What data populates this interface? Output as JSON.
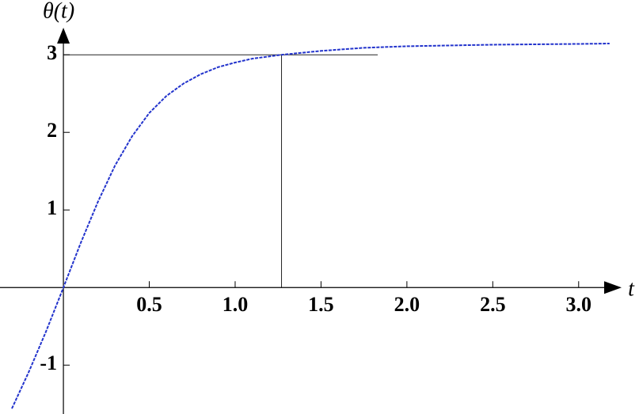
{
  "chart_data": {
    "type": "line",
    "x_label": "t",
    "y_label": "θ(t)",
    "x": [
      -0.3,
      -0.2,
      -0.1,
      0,
      0.1,
      0.2,
      0.3,
      0.4,
      0.5,
      0.6,
      0.7,
      0.8,
      0.9,
      1.0,
      1.1,
      1.27,
      1.5,
      1.75,
      2.0,
      2.5,
      3.0,
      3.18
    ],
    "series": [
      {
        "color": "#2233cc",
        "values": [
          -1.56,
          -1.08,
          -0.56,
          0,
          0.57,
          1.1,
          1.57,
          1.95,
          2.25,
          2.47,
          2.63,
          2.75,
          2.84,
          2.9,
          2.95,
          3.0,
          3.05,
          3.09,
          3.11,
          3.13,
          3.14,
          3.145
        ]
      }
    ],
    "xlim": [
      -0.3,
      3.25
    ],
    "ylim": [
      -1.63,
      3.4
    ],
    "xticks": [
      0.5,
      {
        "value": 1,
        "label": "1.0"
      },
      1.5,
      {
        "value": 2,
        "label": "2.0"
      },
      2.5,
      {
        "value": 3,
        "label": "3.0"
      }
    ],
    "yticks": [
      -1,
      1,
      2,
      3
    ],
    "vline": {
      "x": 1.27,
      "ymin": 0,
      "ymax": 3
    },
    "hline": {
      "y": 3,
      "xmin": 0,
      "xmax": 1.83
    }
  }
}
